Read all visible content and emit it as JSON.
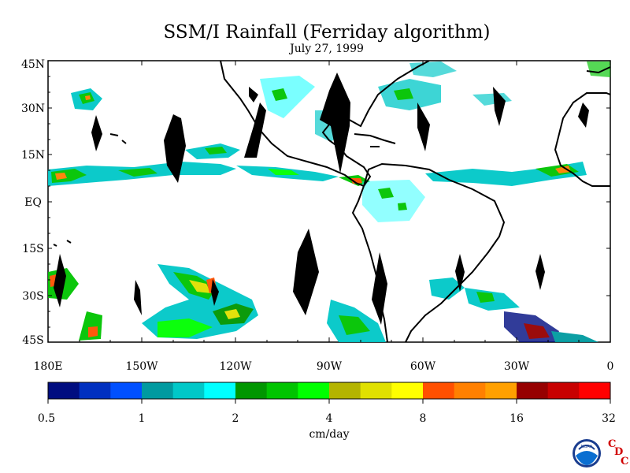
{
  "title": "SSM/I Rainfall (Ferriday algorithm)",
  "subtitle": "July 27, 1999",
  "latitude_labels": [
    "45N",
    "30N",
    "15N",
    "EQ",
    "15S",
    "30S",
    "45S"
  ],
  "longitude_labels": [
    "180E",
    "150W",
    "120W",
    "90W",
    "60W",
    "30W",
    "0"
  ],
  "colorbar": {
    "unit": "cm/day",
    "tick_labels": [
      "0.5",
      "1",
      "2",
      "4",
      "8",
      "16",
      "32"
    ],
    "colors": [
      "#000d80",
      "#0030c0",
      "#0050ff",
      "#009aa0",
      "#00c8c8",
      "#00ffff",
      "#009600",
      "#00c400",
      "#00ff00",
      "#b4b400",
      "#e0e000",
      "#ffff00",
      "#ff5000",
      "#ff8000",
      "#ffa000",
      "#960000",
      "#c80000",
      "#ff0000"
    ]
  },
  "logos": {
    "noaa": "NOAA",
    "cdc": [
      "C",
      "D",
      "C"
    ]
  },
  "colors": {
    "land_outline": "#000000",
    "swath_gap": "#000000",
    "background": "#ffffff"
  }
}
